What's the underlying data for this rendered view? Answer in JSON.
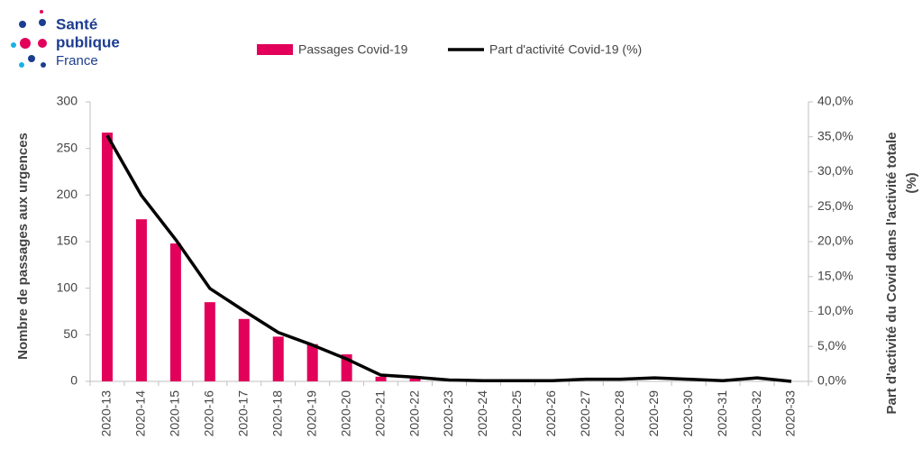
{
  "logo": {
    "lines": [
      "Santé",
      "publique",
      "France"
    ]
  },
  "chart_data": {
    "type": "bar_line",
    "categories": [
      "2020-13",
      "2020-14",
      "2020-15",
      "2020-16",
      "2020-17",
      "2020-18",
      "2020-19",
      "2020-20",
      "2020-21",
      "2020-22",
      "2020-23",
      "2020-24",
      "2020-25",
      "2020-26",
      "2020-27",
      "2020-28",
      "2020-29",
      "2020-30",
      "2020-31",
      "2020-32",
      "2020-33"
    ],
    "series": [
      {
        "name": "Passages Covid-19",
        "type": "bar",
        "color": "#e2005a",
        "values": [
          267,
          174,
          148,
          85,
          67,
          48,
          40,
          29,
          5,
          3,
          0,
          0,
          0,
          0,
          0,
          0,
          0,
          0,
          0,
          0,
          0
        ]
      },
      {
        "name": "Part d'activité Covid-19 (%)",
        "type": "line",
        "axis": "y2",
        "color": "#000000",
        "values": [
          35.2,
          26.6,
          20.3,
          13.3,
          10.1,
          7.0,
          5.2,
          3.2,
          0.9,
          0.6,
          0.2,
          0.1,
          0.1,
          0.1,
          0.3,
          0.3,
          0.5,
          0.3,
          0.1,
          0.5,
          0.0
        ]
      }
    ],
    "ylabel": "Nombre de passages  aux urgences",
    "y2label": [
      "Part d'activité du Covid dans l'activité totale",
      "(%)"
    ],
    "ylim": [
      0,
      300
    ],
    "yticks": [
      0,
      50,
      100,
      150,
      200,
      250,
      300
    ],
    "y2lim": [
      0,
      40
    ],
    "y2ticks": [
      {
        "value": 0,
        "label": "0,0%"
      },
      {
        "value": 5,
        "label": "5,0%"
      },
      {
        "value": 10,
        "label": "10,0%"
      },
      {
        "value": 15,
        "label": "15,0%"
      },
      {
        "value": 20,
        "label": "20,0%"
      },
      {
        "value": 25,
        "label": "25,0%"
      },
      {
        "value": 30,
        "label": "30,0%"
      },
      {
        "value": 35,
        "label": "35,0%"
      },
      {
        "value": 40,
        "label": "40,0%"
      }
    ],
    "legend": "top"
  }
}
